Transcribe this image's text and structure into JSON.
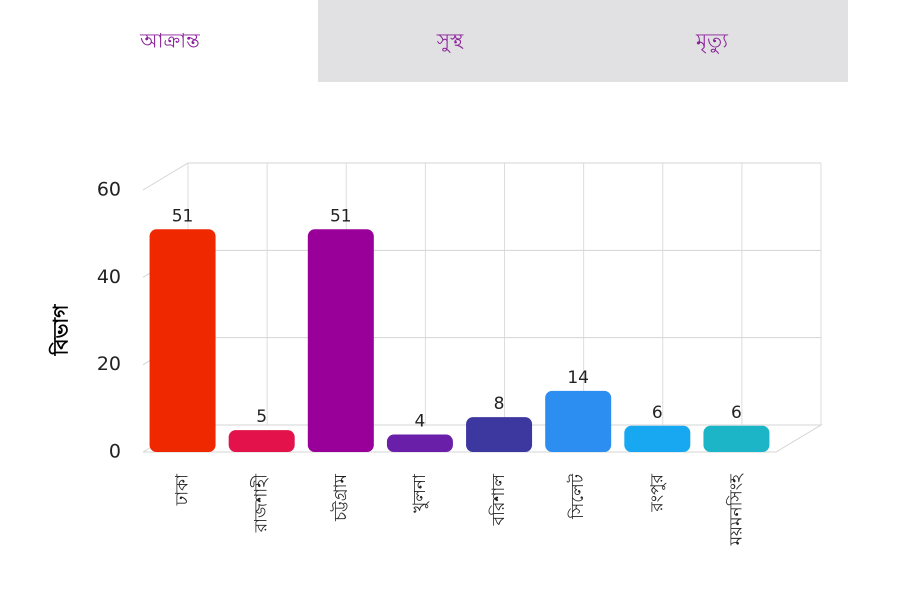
{
  "tabs": [
    "আক্রান্ত",
    "সুস্থ",
    "মৃত্যু"
  ],
  "chart_data": {
    "type": "bar",
    "y_label": "বিভাগ",
    "categories": [
      "ঢাকা",
      "রাজশাহী",
      "চট্টগ্রাম",
      "খুলনা",
      "বরিশাল",
      "সিলেট",
      "রংপুর",
      "ময়মনসিংহ"
    ],
    "values": [
      51,
      5,
      51,
      4,
      8,
      14,
      6,
      6
    ],
    "colors": [
      "#f02800",
      "#e3124b",
      "#990099",
      "#6a1fa8",
      "#3d37a0",
      "#2b8ef0",
      "#18a8f2",
      "#1cb5c8"
    ],
    "ylim": [
      0,
      60
    ],
    "yticks": [
      0,
      20,
      40,
      60
    ],
    "grid": true
  }
}
